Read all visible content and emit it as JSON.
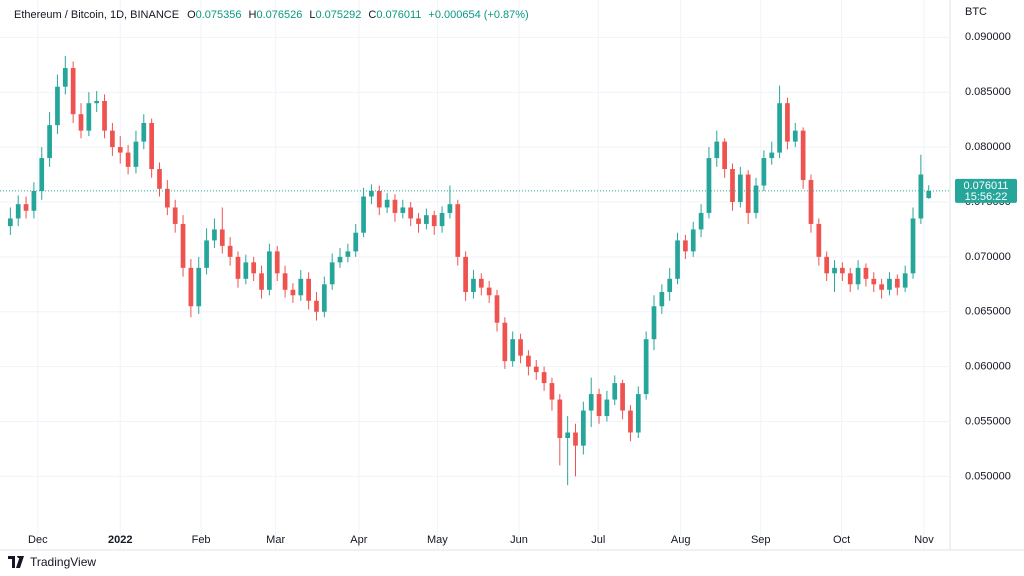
{
  "chart_data": {
    "type": "candlestick",
    "title": "Ethereum / Bitcoin, 1D, BINANCE",
    "legend": {
      "o_label": "O",
      "h_label": "H",
      "l_label": "L",
      "c_label": "C",
      "change": "+0.000654 (+0.87%)"
    },
    "currency": "BTC",
    "countdown": "15:56:22",
    "open": [
      0.0728,
      0.0735,
      0.0748,
      0.0742,
      0.076,
      0.079,
      0.082,
      0.0855,
      0.0872,
      0.083,
      0.0815,
      0.084,
      0.0842,
      0.0815,
      0.08,
      0.0795,
      0.0782,
      0.0805,
      0.0822,
      0.078,
      0.0762,
      0.0745,
      0.073,
      0.069,
      0.0655,
      0.069,
      0.0715,
      0.0725,
      0.071,
      0.07,
      0.068,
      0.0695,
      0.0685,
      0.067,
      0.0705,
      0.0685,
      0.067,
      0.0665,
      0.068,
      0.066,
      0.065,
      0.0675,
      0.0695,
      0.07,
      0.0705,
      0.0722,
      0.0755,
      0.076,
      0.0745,
      0.0752,
      0.074,
      0.0745,
      0.0735,
      0.073,
      0.0738,
      0.0728,
      0.074,
      0.0748,
      0.07,
      0.0668,
      0.068,
      0.0672,
      0.0665,
      0.064,
      0.0605,
      0.0625,
      0.061,
      0.06,
      0.0595,
      0.0585,
      0.057,
      0.0535,
      0.054,
      0.0528,
      0.056,
      0.0575,
      0.0555,
      0.057,
      0.0585,
      0.056,
      0.054,
      0.0575,
      0.0625,
      0.0655,
      0.0668,
      0.068,
      0.0715,
      0.0705,
      0.0725,
      0.074,
      0.079,
      0.0805,
      0.078,
      0.075,
      0.0775,
      0.074,
      0.0765,
      0.079,
      0.0795,
      0.084,
      0.0805,
      0.0815,
      0.077,
      0.073,
      0.07,
      0.0685,
      0.069,
      0.0685,
      0.0675,
      0.069,
      0.068,
      0.0675,
      0.067,
      0.068,
      0.0672,
      0.0685,
      0.0735,
      0.075356
    ],
    "high": [
      0.0745,
      0.0756,
      0.0755,
      0.0768,
      0.08,
      0.0832,
      0.0866,
      0.0883,
      0.0878,
      0.084,
      0.085,
      0.0851,
      0.0848,
      0.0822,
      0.081,
      0.0802,
      0.0815,
      0.083,
      0.0826,
      0.0786,
      0.077,
      0.0752,
      0.0738,
      0.0698,
      0.07,
      0.0726,
      0.0735,
      0.0745,
      0.0718,
      0.0705,
      0.0702,
      0.07,
      0.0692,
      0.0712,
      0.071,
      0.0692,
      0.0676,
      0.0688,
      0.0686,
      0.0668,
      0.0682,
      0.0703,
      0.0708,
      0.0712,
      0.073,
      0.0763,
      0.0766,
      0.0765,
      0.0758,
      0.0757,
      0.0752,
      0.075,
      0.074,
      0.0744,
      0.0742,
      0.0746,
      0.0765,
      0.0752,
      0.0705,
      0.0688,
      0.0685,
      0.0678,
      0.067,
      0.0645,
      0.0632,
      0.063,
      0.0615,
      0.0606,
      0.06,
      0.059,
      0.0575,
      0.0555,
      0.0548,
      0.0568,
      0.059,
      0.058,
      0.0578,
      0.0592,
      0.0588,
      0.0565,
      0.0582,
      0.0632,
      0.0665,
      0.0675,
      0.069,
      0.0722,
      0.072,
      0.0732,
      0.0748,
      0.08,
      0.0815,
      0.0808,
      0.0785,
      0.0782,
      0.0779,
      0.0772,
      0.0797,
      0.0805,
      0.0856,
      0.0845,
      0.0822,
      0.0818,
      0.0775,
      0.0735,
      0.0705,
      0.0697,
      0.0695,
      0.069,
      0.0697,
      0.0694,
      0.0686,
      0.068,
      0.0686,
      0.0684,
      0.0692,
      0.0745,
      0.0793,
      0.076526
    ],
    "low": [
      0.072,
      0.0728,
      0.0735,
      0.0735,
      0.0752,
      0.0782,
      0.0812,
      0.0848,
      0.0822,
      0.0808,
      0.081,
      0.0832,
      0.0808,
      0.0792,
      0.0785,
      0.0775,
      0.0776,
      0.0798,
      0.0772,
      0.0755,
      0.0738,
      0.0722,
      0.0682,
      0.0645,
      0.0648,
      0.0684,
      0.0708,
      0.0703,
      0.0692,
      0.0672,
      0.0675,
      0.0678,
      0.0662,
      0.0665,
      0.0678,
      0.0663,
      0.0658,
      0.066,
      0.0652,
      0.0642,
      0.0645,
      0.067,
      0.069,
      0.0695,
      0.07,
      0.0718,
      0.0748,
      0.0738,
      0.074,
      0.0732,
      0.0735,
      0.0728,
      0.0722,
      0.0725,
      0.072,
      0.0722,
      0.0735,
      0.0692,
      0.066,
      0.0662,
      0.0665,
      0.0658,
      0.0632,
      0.0598,
      0.06,
      0.0603,
      0.0592,
      0.0588,
      0.0578,
      0.056,
      0.051,
      0.0492,
      0.05,
      0.052,
      0.0545,
      0.0548,
      0.055,
      0.0565,
      0.0552,
      0.0532,
      0.0535,
      0.057,
      0.0615,
      0.0648,
      0.066,
      0.0675,
      0.0698,
      0.07,
      0.0718,
      0.0735,
      0.0782,
      0.0772,
      0.0742,
      0.0745,
      0.073,
      0.0735,
      0.076,
      0.0784,
      0.079,
      0.0798,
      0.08,
      0.0762,
      0.0722,
      0.0692,
      0.0678,
      0.0668,
      0.0678,
      0.0668,
      0.067,
      0.0673,
      0.0668,
      0.0662,
      0.0665,
      0.0665,
      0.0668,
      0.068,
      0.073,
      0.075292
    ],
    "close": [
      0.0735,
      0.0748,
      0.0742,
      0.076,
      0.079,
      0.082,
      0.0855,
      0.0872,
      0.083,
      0.0815,
      0.084,
      0.0842,
      0.0815,
      0.08,
      0.0795,
      0.0782,
      0.0805,
      0.0822,
      0.078,
      0.0762,
      0.0745,
      0.073,
      0.069,
      0.0655,
      0.069,
      0.0715,
      0.0725,
      0.071,
      0.07,
      0.068,
      0.0695,
      0.0685,
      0.067,
      0.0705,
      0.0685,
      0.067,
      0.0665,
      0.068,
      0.066,
      0.065,
      0.0675,
      0.0695,
      0.07,
      0.0705,
      0.0722,
      0.0755,
      0.076,
      0.0745,
      0.0752,
      0.074,
      0.0745,
      0.0735,
      0.073,
      0.0738,
      0.0728,
      0.074,
      0.0748,
      0.07,
      0.0668,
      0.068,
      0.0672,
      0.0665,
      0.064,
      0.0605,
      0.0625,
      0.061,
      0.06,
      0.0595,
      0.0585,
      0.057,
      0.0535,
      0.054,
      0.0528,
      0.056,
      0.0575,
      0.0555,
      0.057,
      0.0585,
      0.056,
      0.054,
      0.0575,
      0.0625,
      0.0655,
      0.0668,
      0.068,
      0.0715,
      0.0705,
      0.0725,
      0.074,
      0.079,
      0.0805,
      0.078,
      0.075,
      0.0775,
      0.074,
      0.0765,
      0.079,
      0.0795,
      0.084,
      0.0805,
      0.0815,
      0.077,
      0.073,
      0.07,
      0.0685,
      0.069,
      0.0685,
      0.0675,
      0.069,
      0.068,
      0.0675,
      0.067,
      0.068,
      0.0672,
      0.0685,
      0.0735,
      0.0775,
      0.076011
    ],
    "up_color": "#26a69a",
    "down_color": "#ef5350",
    "ylim": [
      0.0453,
      0.0934
    ],
    "yticks": [
      {
        "value": 0.05,
        "label": "0.050000"
      },
      {
        "value": 0.055,
        "label": "0.055000"
      },
      {
        "value": 0.06,
        "label": "0.060000"
      },
      {
        "value": 0.065,
        "label": "0.065000"
      },
      {
        "value": 0.07,
        "label": "0.070000"
      },
      {
        "value": 0.075,
        "label": "0.075000"
      },
      {
        "value": 0.08,
        "label": "0.080000"
      },
      {
        "value": 0.085,
        "label": "0.085000"
      },
      {
        "value": 0.09,
        "label": "0.090000"
      }
    ],
    "xlim": [
      -0.3,
      117.8
    ],
    "xticks": [
      {
        "value": 3.5,
        "label": "Dec"
      },
      {
        "value": 14,
        "label": "2022"
      },
      {
        "value": 24.3,
        "label": "Feb"
      },
      {
        "value": 33.8,
        "label": "Mar"
      },
      {
        "value": 44.4,
        "label": "Apr"
      },
      {
        "value": 54.4,
        "label": "May"
      },
      {
        "value": 64.8,
        "label": "Jun"
      },
      {
        "value": 74.9,
        "label": "Jul"
      },
      {
        "value": 85.4,
        "label": "Aug"
      },
      {
        "value": 95.6,
        "label": "Sep"
      },
      {
        "value": 105.9,
        "label": "Oct"
      },
      {
        "value": 116.4,
        "label": "Nov"
      }
    ],
    "grid": true
  },
  "branding": "TradingView"
}
